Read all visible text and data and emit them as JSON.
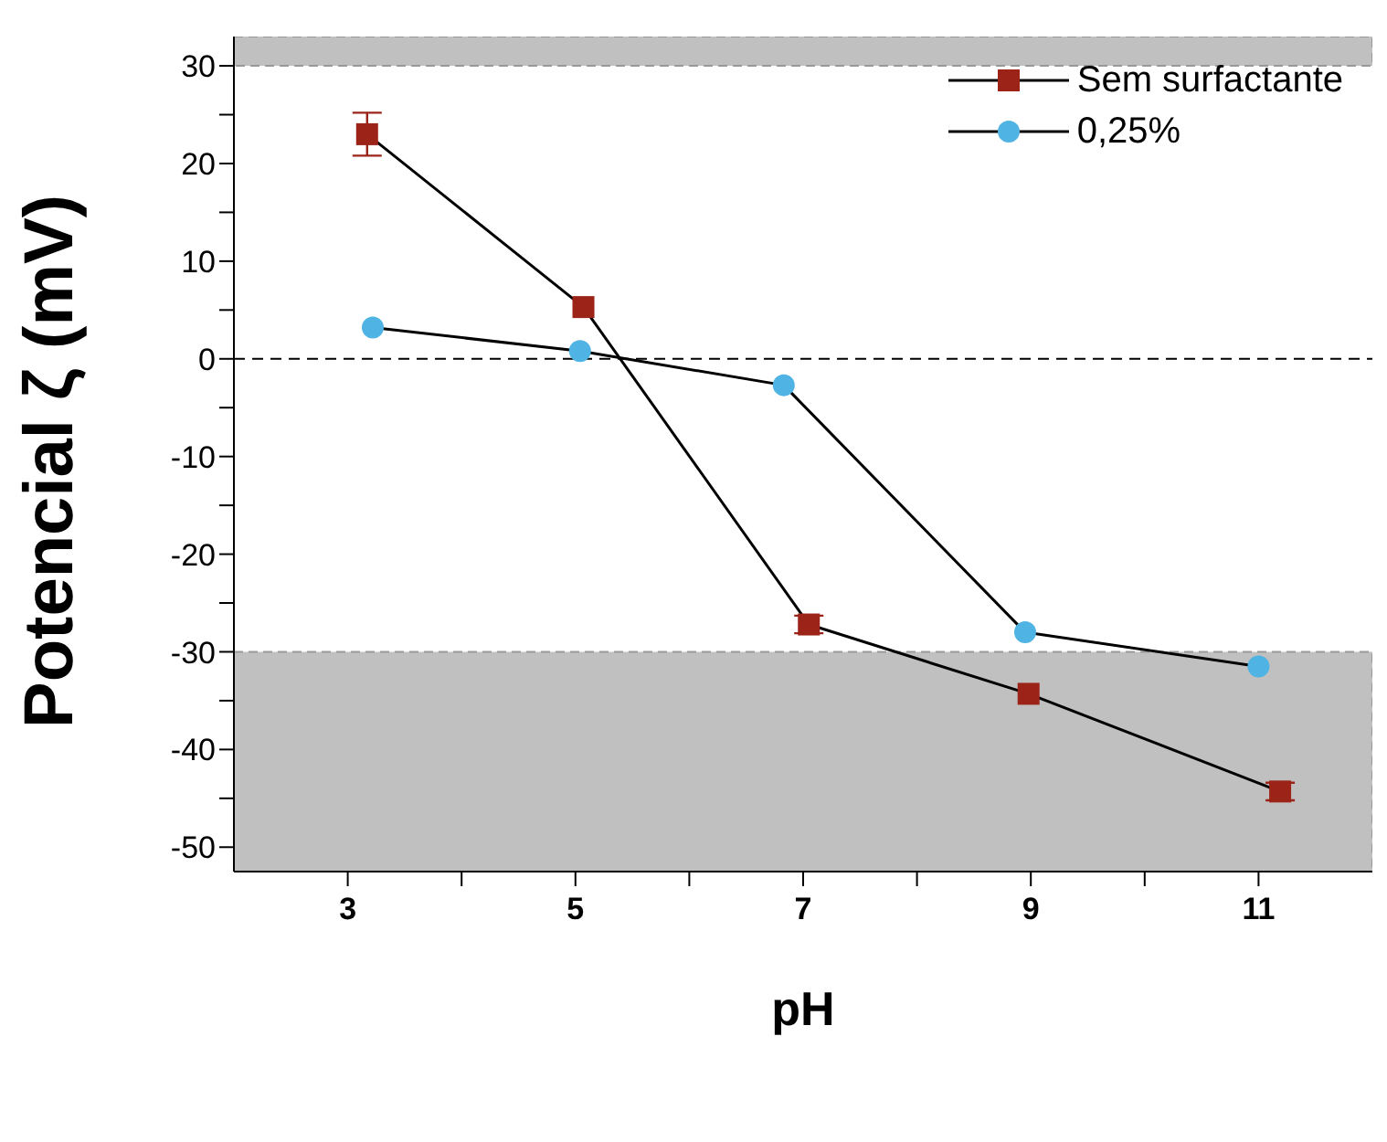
{
  "chart_data": {
    "type": "line",
    "xlabel": "pH",
    "ylabel": "Potencial ζ (mV)",
    "xlim": [
      2,
      12
    ],
    "xticks": [
      3,
      {
        "value": 4,
        "label": null
      },
      5,
      {
        "value": 6,
        "label": null
      },
      7,
      {
        "value": 8,
        "label": null
      },
      9,
      {
        "value": 10,
        "label": null
      },
      11
    ],
    "ylim": [
      -52.5,
      33
    ],
    "yticks": [
      -50,
      {
        "value": -45,
        "label": null
      },
      -40,
      {
        "value": -35,
        "label": null
      },
      -30,
      {
        "value": -25,
        "label": null
      },
      -20,
      {
        "value": -15,
        "label": null
      },
      -10,
      {
        "value": -5,
        "label": null
      },
      0,
      {
        "value": 5,
        "label": null
      },
      10,
      {
        "value": 15,
        "label": null
      },
      20,
      {
        "value": 25,
        "label": null
      },
      30
    ],
    "series": [
      {
        "name": "Sem surfactante",
        "color": "#9b2318",
        "marker": "square",
        "x": [
          3.17,
          5.07,
          7.05,
          8.98,
          11.19
        ],
        "values": [
          23,
          5.3,
          -27.2,
          -34.3,
          -44.3
        ],
        "errors": [
          2.2,
          null,
          0.9,
          null,
          0.9
        ]
      },
      {
        "name": "0,25%",
        "color": "#4fb3e3",
        "marker": "circle",
        "x": [
          3.22,
          5.04,
          6.83,
          8.95,
          11
        ],
        "values": [
          3.2,
          0.8,
          -2.7,
          -28,
          -31.5
        ]
      }
    ],
    "bands": [
      {
        "axis": "y",
        "from": 30,
        "to": 33,
        "color": "#c0c0c0"
      },
      {
        "axis": "y",
        "from": -52.5,
        "to": -30,
        "color": "#c0c0c0"
      }
    ],
    "ref_lines": [
      {
        "axis": "y",
        "value": 0,
        "color": "#000000",
        "line_style": "dashed"
      }
    ],
    "line_style": "solid",
    "legend": "top right"
  }
}
